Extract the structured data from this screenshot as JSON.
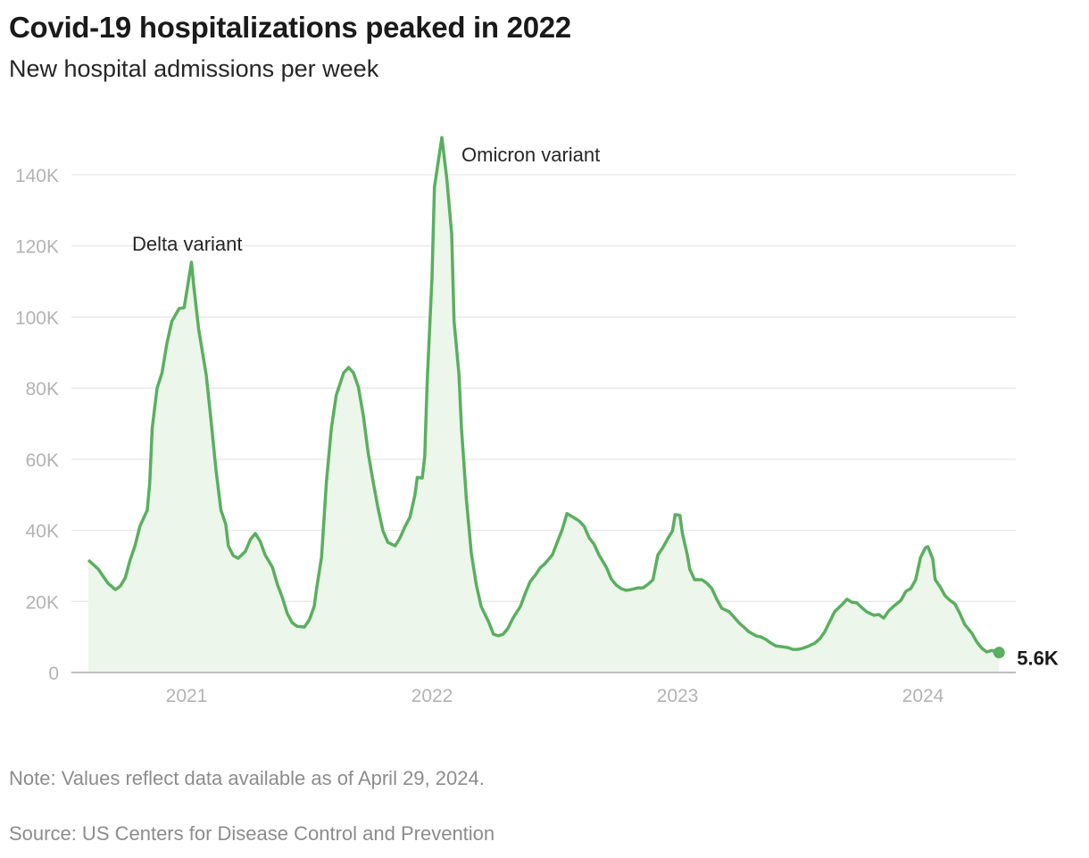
{
  "title": "Covid-19 hospitalizations peaked in 2022",
  "subtitle": "New hospital admissions per week",
  "note": "Note: Values reflect data available as of April 29, 2024.",
  "source": "Source: US Centers for Disease Control and Prevention",
  "colors": {
    "line": "#5aaf5f",
    "area": "#ecf6ea",
    "grid": "#e6e6e6",
    "axis": "#bdbdbd",
    "tick_text": "#b3b3b3"
  },
  "chart_data": {
    "type": "area",
    "title": "Covid-19 hospitalizations peaked in 2022",
    "subtitle": "New hospital admissions per week",
    "xlabel": "",
    "ylabel": "",
    "x_ticks": [
      "2021",
      "2022",
      "2023",
      "2024"
    ],
    "y_ticks": [
      "0",
      "20K",
      "40K",
      "60K",
      "80K",
      "100K",
      "120K",
      "140K"
    ],
    "ylim": [
      0,
      150000
    ],
    "grid": true,
    "annotations": [
      {
        "text": "Delta variant",
        "x": 2021.02,
        "y": 115400
      },
      {
        "text": "Omicron variant",
        "x": 2022.04,
        "y": 150500
      }
    ],
    "end_label": "5.6K",
    "series": [
      {
        "points": [
          [
            2020.6,
            31.6
          ],
          [
            2020.64,
            29.1
          ],
          [
            2020.68,
            25.1
          ],
          [
            2020.71,
            23.3
          ],
          [
            2020.73,
            24.3
          ],
          [
            2020.75,
            26.6
          ],
          [
            2020.77,
            31.6
          ],
          [
            2020.79,
            35.6
          ],
          [
            2020.81,
            41.1
          ],
          [
            2020.84,
            45.7
          ],
          [
            2020.85,
            53.2
          ],
          [
            2020.86,
            68.7
          ],
          [
            2020.88,
            80.0
          ],
          [
            2020.9,
            84.3
          ],
          [
            2020.92,
            92.6
          ],
          [
            2020.94,
            98.8
          ],
          [
            2020.97,
            102.4
          ],
          [
            2020.99,
            102.6
          ],
          [
            2021.02,
            115.4
          ],
          [
            2021.03,
            108.4
          ],
          [
            2021.05,
            96.3
          ],
          [
            2021.08,
            83.8
          ],
          [
            2021.1,
            70.7
          ],
          [
            2021.12,
            56.9
          ],
          [
            2021.14,
            45.7
          ],
          [
            2021.16,
            41.6
          ],
          [
            2021.17,
            35.6
          ],
          [
            2021.19,
            32.9
          ],
          [
            2021.21,
            32.1
          ],
          [
            2021.24,
            34.1
          ],
          [
            2021.26,
            37.4
          ],
          [
            2021.28,
            39.1
          ],
          [
            2021.3,
            36.9
          ],
          [
            2021.32,
            33.1
          ],
          [
            2021.35,
            29.6
          ],
          [
            2021.37,
            24.8
          ],
          [
            2021.39,
            21.1
          ],
          [
            2021.41,
            16.6
          ],
          [
            2021.43,
            14.0
          ],
          [
            2021.45,
            13.0
          ],
          [
            2021.48,
            12.8
          ],
          [
            2021.5,
            14.8
          ],
          [
            2021.52,
            18.6
          ],
          [
            2021.53,
            23.6
          ],
          [
            2021.55,
            32.4
          ],
          [
            2021.57,
            53.7
          ],
          [
            2021.59,
            68.7
          ],
          [
            2021.61,
            78.0
          ],
          [
            2021.64,
            84.3
          ],
          [
            2021.66,
            85.8
          ],
          [
            2021.68,
            84.3
          ],
          [
            2021.7,
            80.3
          ],
          [
            2021.72,
            72.3
          ],
          [
            2021.74,
            61.7
          ],
          [
            2021.76,
            53.7
          ],
          [
            2021.78,
            46.2
          ],
          [
            2021.8,
            39.9
          ],
          [
            2021.82,
            36.6
          ],
          [
            2021.85,
            35.6
          ],
          [
            2021.87,
            37.9
          ],
          [
            2021.89,
            41.1
          ],
          [
            2021.91,
            43.7
          ],
          [
            2021.93,
            49.9
          ],
          [
            2021.94,
            54.9
          ],
          [
            2021.96,
            54.7
          ],
          [
            2021.97,
            60.7
          ],
          [
            2021.98,
            81.3
          ],
          [
            2022.0,
            111.4
          ],
          [
            2022.01,
            136.5
          ],
          [
            2022.04,
            150.5
          ],
          [
            2022.06,
            139.0
          ],
          [
            2022.08,
            123.4
          ],
          [
            2022.09,
            98.8
          ],
          [
            2022.11,
            83.8
          ],
          [
            2022.12,
            68.7
          ],
          [
            2022.14,
            48.7
          ],
          [
            2022.16,
            33.6
          ],
          [
            2022.18,
            24.8
          ],
          [
            2022.2,
            18.6
          ],
          [
            2022.23,
            14.3
          ],
          [
            2022.25,
            10.8
          ],
          [
            2022.27,
            10.3
          ],
          [
            2022.29,
            10.8
          ],
          [
            2022.31,
            12.5
          ],
          [
            2022.33,
            15.3
          ],
          [
            2022.36,
            18.6
          ],
          [
            2022.38,
            22.3
          ],
          [
            2022.4,
            25.6
          ],
          [
            2022.42,
            27.3
          ],
          [
            2022.44,
            29.4
          ],
          [
            2022.46,
            30.6
          ],
          [
            2022.49,
            33.1
          ],
          [
            2022.51,
            36.6
          ],
          [
            2022.53,
            40.1
          ],
          [
            2022.55,
            44.7
          ],
          [
            2022.57,
            43.9
          ],
          [
            2022.6,
            42.6
          ],
          [
            2022.62,
            41.1
          ],
          [
            2022.64,
            37.9
          ],
          [
            2022.66,
            36.1
          ],
          [
            2022.68,
            33.1
          ],
          [
            2022.71,
            29.6
          ],
          [
            2022.73,
            26.3
          ],
          [
            2022.75,
            24.6
          ],
          [
            2022.77,
            23.6
          ],
          [
            2022.79,
            23.1
          ],
          [
            2022.81,
            23.3
          ],
          [
            2022.84,
            23.8
          ],
          [
            2022.86,
            23.8
          ],
          [
            2022.88,
            24.8
          ],
          [
            2022.9,
            26.1
          ],
          [
            2022.92,
            33.1
          ],
          [
            2022.94,
            35.1
          ],
          [
            2022.96,
            37.6
          ],
          [
            2022.98,
            39.9
          ],
          [
            2022.99,
            44.4
          ],
          [
            2023.01,
            44.2
          ],
          [
            2023.02,
            39.1
          ],
          [
            2023.04,
            33.1
          ],
          [
            2023.05,
            29.1
          ],
          [
            2023.07,
            26.1
          ],
          [
            2023.1,
            26.1
          ],
          [
            2023.12,
            25.1
          ],
          [
            2023.14,
            23.6
          ],
          [
            2023.16,
            20.6
          ],
          [
            2023.18,
            18.1
          ],
          [
            2023.21,
            17.1
          ],
          [
            2023.23,
            15.6
          ],
          [
            2023.25,
            14.0
          ],
          [
            2023.27,
            12.8
          ],
          [
            2023.29,
            11.5
          ],
          [
            2023.32,
            10.3
          ],
          [
            2023.34,
            10.0
          ],
          [
            2023.36,
            9.3
          ],
          [
            2023.38,
            8.3
          ],
          [
            2023.4,
            7.5
          ],
          [
            2023.42,
            7.3
          ],
          [
            2023.45,
            7.0
          ],
          [
            2023.47,
            6.5
          ],
          [
            2023.49,
            6.5
          ],
          [
            2023.51,
            6.8
          ],
          [
            2023.53,
            7.3
          ],
          [
            2023.56,
            8.3
          ],
          [
            2023.58,
            9.5
          ],
          [
            2023.6,
            11.5
          ],
          [
            2023.62,
            14.3
          ],
          [
            2023.64,
            17.1
          ],
          [
            2023.67,
            19.1
          ],
          [
            2023.69,
            20.6
          ],
          [
            2023.71,
            19.8
          ],
          [
            2023.73,
            19.6
          ],
          [
            2023.75,
            18.3
          ],
          [
            2023.77,
            17.1
          ],
          [
            2023.8,
            16.1
          ],
          [
            2023.82,
            16.3
          ],
          [
            2023.84,
            15.3
          ],
          [
            2023.86,
            17.3
          ],
          [
            2023.88,
            18.6
          ],
          [
            2023.91,
            20.3
          ],
          [
            2023.93,
            22.8
          ],
          [
            2023.95,
            23.6
          ],
          [
            2023.97,
            26.1
          ],
          [
            2023.99,
            32.4
          ],
          [
            2024.01,
            35.1
          ],
          [
            2024.02,
            35.4
          ],
          [
            2024.04,
            31.9
          ],
          [
            2024.05,
            26.1
          ],
          [
            2024.07,
            24.1
          ],
          [
            2024.09,
            21.6
          ],
          [
            2024.11,
            20.3
          ],
          [
            2024.13,
            19.3
          ],
          [
            2024.15,
            16.6
          ],
          [
            2024.17,
            13.5
          ],
          [
            2024.2,
            11.0
          ],
          [
            2024.22,
            8.5
          ],
          [
            2024.24,
            6.8
          ],
          [
            2024.26,
            5.8
          ],
          [
            2024.28,
            6.2
          ],
          [
            2024.31,
            5.6
          ]
        ],
        "unit": "thousands"
      }
    ]
  }
}
